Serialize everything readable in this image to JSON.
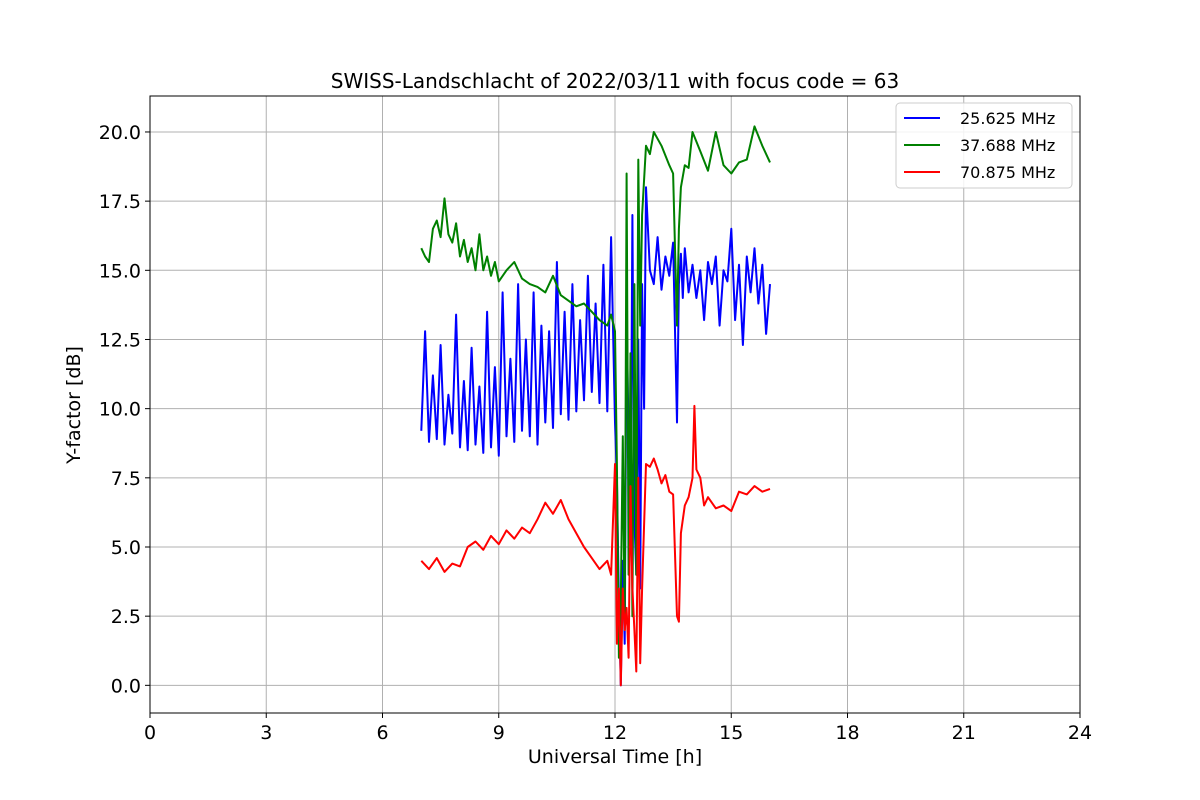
{
  "chart_data": {
    "type": "line",
    "title": "SWISS-Landschlacht of 2022/03/11 with focus code = 63",
    "xlabel": "Universal Time [h]",
    "ylabel": "Y-factor [dB]",
    "xlim": [
      0,
      24
    ],
    "ylim": [
      -1.0,
      21.3
    ],
    "xticks": [
      0,
      3,
      6,
      9,
      12,
      15,
      18,
      21,
      24
    ],
    "xtick_labels": [
      "0",
      "3",
      "6",
      "9",
      "12",
      "15",
      "18",
      "21",
      "24"
    ],
    "yticks": [
      0.0,
      2.5,
      5.0,
      7.5,
      10.0,
      12.5,
      15.0,
      17.5,
      20.0
    ],
    "ytick_labels": [
      "0.0",
      "2.5",
      "5.0",
      "7.5",
      "10.0",
      "12.5",
      "15.0",
      "17.5",
      "20.0"
    ],
    "grid": true,
    "legend_position": "top-right",
    "series": [
      {
        "name": "25.625 MHz",
        "color": "#0000ff",
        "x": [
          7.0,
          7.1,
          7.2,
          7.3,
          7.4,
          7.5,
          7.6,
          7.7,
          7.8,
          7.9,
          8.0,
          8.1,
          8.2,
          8.3,
          8.4,
          8.5,
          8.6,
          8.7,
          8.8,
          8.9,
          9.0,
          9.1,
          9.2,
          9.3,
          9.4,
          9.5,
          9.6,
          9.7,
          9.8,
          9.9,
          10.0,
          10.1,
          10.2,
          10.3,
          10.4,
          10.5,
          10.6,
          10.7,
          10.8,
          10.9,
          11.0,
          11.1,
          11.2,
          11.3,
          11.4,
          11.5,
          11.6,
          11.7,
          11.8,
          11.9,
          12.0,
          12.05,
          12.1,
          12.15,
          12.2,
          12.25,
          12.3,
          12.35,
          12.4,
          12.45,
          12.5,
          12.55,
          12.6,
          12.65,
          12.7,
          12.75,
          12.8,
          12.9,
          13.0,
          13.1,
          13.2,
          13.3,
          13.4,
          13.5,
          13.6,
          13.65,
          13.7,
          13.75,
          13.8,
          13.9,
          14.0,
          14.1,
          14.2,
          14.3,
          14.4,
          14.5,
          14.6,
          14.7,
          14.8,
          14.9,
          15.0,
          15.1,
          15.2,
          15.3,
          15.4,
          15.5,
          15.6,
          15.7,
          15.8,
          15.9,
          16.0
        ],
        "y": [
          9.2,
          12.8,
          8.8,
          11.2,
          8.9,
          12.3,
          8.7,
          10.5,
          9.1,
          13.4,
          8.6,
          11.0,
          8.5,
          12.2,
          8.7,
          10.8,
          8.4,
          13.5,
          8.6,
          11.5,
          8.3,
          14.2,
          9.0,
          11.8,
          8.8,
          14.5,
          9.2,
          12.5,
          9.0,
          14.2,
          8.7,
          13.0,
          9.5,
          12.8,
          9.3,
          15.3,
          9.8,
          13.5,
          9.6,
          14.5,
          9.9,
          13.2,
          10.3,
          14.8,
          10.6,
          13.8,
          10.2,
          15.2,
          9.9,
          16.2,
          9.5,
          7.5,
          3.0,
          0.0,
          4.5,
          1.5,
          13.5,
          9.0,
          5.0,
          17.0,
          6.0,
          4.0,
          12.5,
          3.5,
          14.5,
          10.0,
          18.0,
          15.0,
          14.5,
          16.2,
          14.3,
          15.5,
          14.8,
          16.0,
          9.5,
          14.5,
          15.6,
          14.0,
          15.8,
          14.2,
          15.2,
          14.0,
          15.0,
          13.2,
          15.3,
          14.5,
          15.5,
          13.0,
          15.0,
          14.6,
          16.5,
          13.2,
          15.2,
          12.3,
          15.5,
          14.2,
          15.8,
          13.8,
          15.2,
          12.7,
          14.5
        ]
      },
      {
        "name": "37.688 MHz",
        "color": "#008000",
        "x": [
          7.0,
          7.1,
          7.2,
          7.3,
          7.4,
          7.5,
          7.6,
          7.7,
          7.8,
          7.9,
          8.0,
          8.1,
          8.2,
          8.3,
          8.4,
          8.5,
          8.6,
          8.7,
          8.8,
          8.9,
          9.0,
          9.2,
          9.4,
          9.6,
          9.8,
          10.0,
          10.2,
          10.4,
          10.6,
          10.8,
          11.0,
          11.2,
          11.4,
          11.6,
          11.8,
          11.9,
          12.0,
          12.05,
          12.1,
          12.15,
          12.2,
          12.25,
          12.3,
          12.35,
          12.4,
          12.45,
          12.5,
          12.55,
          12.6,
          12.65,
          12.7,
          12.8,
          12.9,
          13.0,
          13.2,
          13.4,
          13.5,
          13.6,
          13.65,
          13.7,
          13.8,
          13.9,
          14.0,
          14.2,
          14.4,
          14.6,
          14.8,
          15.0,
          15.2,
          15.4,
          15.6,
          15.8,
          16.0
        ],
        "y": [
          15.8,
          15.5,
          15.3,
          16.5,
          16.8,
          16.2,
          17.6,
          16.3,
          16.0,
          16.7,
          15.5,
          16.1,
          15.3,
          15.8,
          15.0,
          16.3,
          15.0,
          15.5,
          14.8,
          15.3,
          14.6,
          15.0,
          15.3,
          14.7,
          14.5,
          14.4,
          14.2,
          14.8,
          14.1,
          13.9,
          13.7,
          13.8,
          13.5,
          13.2,
          13.0,
          13.4,
          12.8,
          8.0,
          1.0,
          3.0,
          9.0,
          2.0,
          18.5,
          4.0,
          12.0,
          2.5,
          14.5,
          4.0,
          19.0,
          13.0,
          17.0,
          19.5,
          19.2,
          20.0,
          19.5,
          18.8,
          18.5,
          13.0,
          16.5,
          18.0,
          18.8,
          18.7,
          20.0,
          19.3,
          18.6,
          20.0,
          18.8,
          18.5,
          18.9,
          19.0,
          20.2,
          19.5,
          18.9
        ]
      },
      {
        "name": "70.875 MHz",
        "color": "#ff0000",
        "x": [
          7.0,
          7.2,
          7.4,
          7.6,
          7.8,
          8.0,
          8.2,
          8.4,
          8.6,
          8.8,
          9.0,
          9.2,
          9.4,
          9.6,
          9.8,
          10.0,
          10.2,
          10.4,
          10.6,
          10.8,
          11.0,
          11.2,
          11.4,
          11.6,
          11.8,
          11.9,
          12.0,
          12.05,
          12.1,
          12.15,
          12.2,
          12.25,
          12.3,
          12.35,
          12.4,
          12.45,
          12.5,
          12.55,
          12.6,
          12.65,
          12.7,
          12.8,
          12.9,
          13.0,
          13.1,
          13.2,
          13.3,
          13.4,
          13.5,
          13.6,
          13.65,
          13.7,
          13.8,
          13.9,
          14.0,
          14.05,
          14.1,
          14.2,
          14.3,
          14.4,
          14.6,
          14.8,
          15.0,
          15.2,
          15.4,
          15.6,
          15.8,
          16.0
        ],
        "y": [
          4.5,
          4.2,
          4.6,
          4.1,
          4.4,
          4.3,
          5.0,
          5.2,
          4.9,
          5.4,
          5.1,
          5.6,
          5.3,
          5.7,
          5.5,
          6.0,
          6.6,
          6.2,
          6.7,
          6.0,
          5.5,
          5.0,
          4.6,
          4.2,
          4.5,
          4.0,
          8.0,
          1.5,
          3.5,
          0.0,
          3.5,
          2.0,
          2.8,
          1.0,
          7.2,
          3.5,
          2.0,
          0.5,
          7.5,
          0.8,
          3.5,
          8.0,
          7.9,
          8.2,
          7.8,
          7.3,
          7.6,
          7.0,
          6.9,
          2.5,
          2.3,
          5.5,
          6.5,
          6.8,
          7.5,
          10.1,
          7.8,
          7.5,
          6.5,
          6.8,
          6.4,
          6.5,
          6.3,
          7.0,
          6.9,
          7.2,
          7.0,
          7.1
        ]
      }
    ]
  }
}
